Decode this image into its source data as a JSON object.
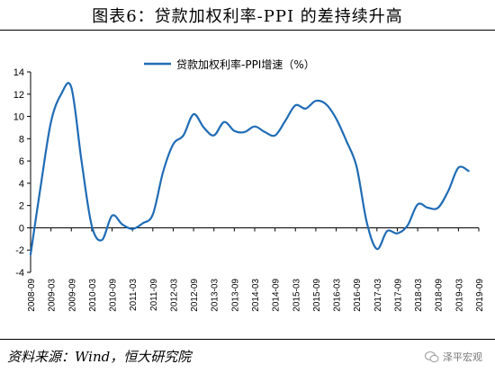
{
  "header": {
    "title": "图表6：贷款加权利率-PPI 的差持续升高"
  },
  "footer": {
    "source": "资料来源：Wind，恒大研究院",
    "watermark": "泽平宏观"
  },
  "colors": {
    "line": "#1f6cb5",
    "axis": "#000000"
  },
  "chart_data": {
    "type": "line",
    "title": "",
    "xlabel": "",
    "ylabel": "",
    "ylim": [
      -4,
      14
    ],
    "yticks": [
      -4,
      -2,
      0,
      2,
      4,
      6,
      8,
      10,
      12,
      14
    ],
    "grid": false,
    "legend": "top-center",
    "xticks": [
      "2008-09",
      "2009-03",
      "2009-09",
      "2010-03",
      "2010-09",
      "2011-03",
      "2011-09",
      "2012-03",
      "2012-09",
      "2013-03",
      "2013-09",
      "2014-03",
      "2014-09",
      "2015-03",
      "2015-09",
      "2016-03",
      "2016-09",
      "2017-03",
      "2017-09",
      "2018-03",
      "2018-09",
      "2019-03",
      "2019-09"
    ],
    "series": [
      {
        "name": "贷款加权利率-PPI增速（%）",
        "x": [
          "2008-09",
          "2008-12",
          "2009-03",
          "2009-06",
          "2009-09",
          "2009-12",
          "2010-03",
          "2010-06",
          "2010-09",
          "2010-12",
          "2011-03",
          "2011-06",
          "2011-09",
          "2011-12",
          "2012-03",
          "2012-06",
          "2012-09",
          "2012-12",
          "2013-03",
          "2013-06",
          "2013-09",
          "2013-12",
          "2014-03",
          "2014-06",
          "2014-09",
          "2014-12",
          "2015-03",
          "2015-06",
          "2015-09",
          "2015-12",
          "2016-03",
          "2016-06",
          "2016-09",
          "2016-12",
          "2017-03",
          "2017-06",
          "2017-09",
          "2017-12",
          "2018-03",
          "2018-06",
          "2018-09",
          "2018-12",
          "2019-03",
          "2019-06"
        ],
        "values": [
          -2.4,
          3.8,
          9.5,
          12.0,
          12.6,
          6.0,
          0.2,
          -1.1,
          1.1,
          0.3,
          -0.1,
          0.4,
          1.2,
          5.0,
          7.5,
          8.3,
          10.2,
          9.0,
          8.3,
          9.5,
          8.7,
          8.6,
          9.1,
          8.6,
          8.3,
          9.6,
          11.0,
          10.7,
          11.4,
          11.1,
          9.8,
          7.8,
          5.5,
          0.5,
          -1.9,
          -0.3,
          -0.5,
          0.2,
          2.1,
          1.8,
          1.8,
          3.3,
          5.4,
          5.1
        ]
      }
    ]
  }
}
